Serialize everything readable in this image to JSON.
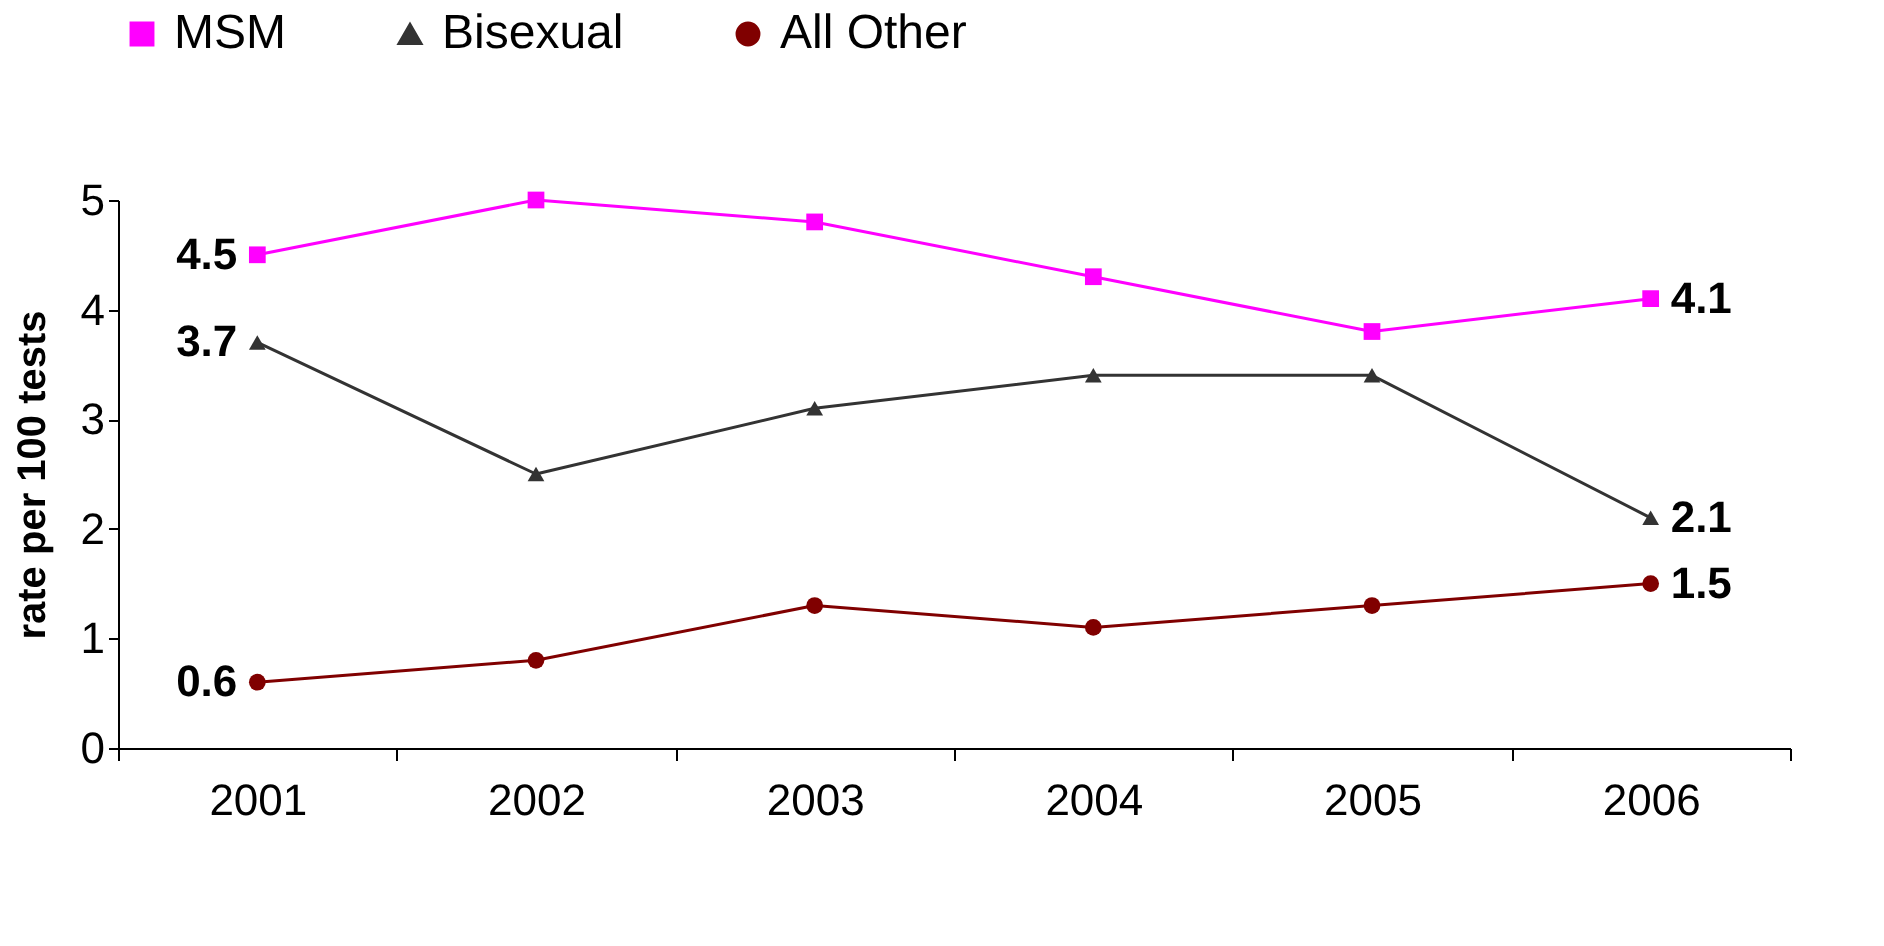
{
  "chart_data": {
    "type": "line",
    "ylabel": "rate per 100 tests",
    "categories": [
      "2001",
      "2002",
      "2003",
      "2004",
      "2005",
      "2006"
    ],
    "ylim": [
      0,
      5
    ],
    "yticks": [
      0,
      1,
      2,
      3,
      4,
      5
    ],
    "grid": false,
    "legend": "top",
    "series": [
      {
        "name": "MSM",
        "color": "#ff00ff",
        "marker": "square",
        "values": [
          4.5,
          5.0,
          4.8,
          4.3,
          3.8,
          4.1
        ],
        "value_labels": [
          "4.5",
          null,
          null,
          null,
          null,
          "4.1"
        ]
      },
      {
        "name": "Bisexual",
        "color": "#333333",
        "marker": "triangle",
        "values": [
          3.7,
          2.5,
          3.1,
          3.4,
          3.4,
          2.1
        ],
        "value_labels": [
          "3.7",
          null,
          null,
          null,
          null,
          "2.1"
        ]
      },
      {
        "name": "All Other",
        "color": "#800000",
        "marker": "circle",
        "values": [
          0.6,
          0.8,
          1.3,
          1.1,
          1.3,
          1.5
        ],
        "value_labels": [
          "0.6",
          null,
          null,
          null,
          null,
          "1.5"
        ]
      }
    ]
  }
}
